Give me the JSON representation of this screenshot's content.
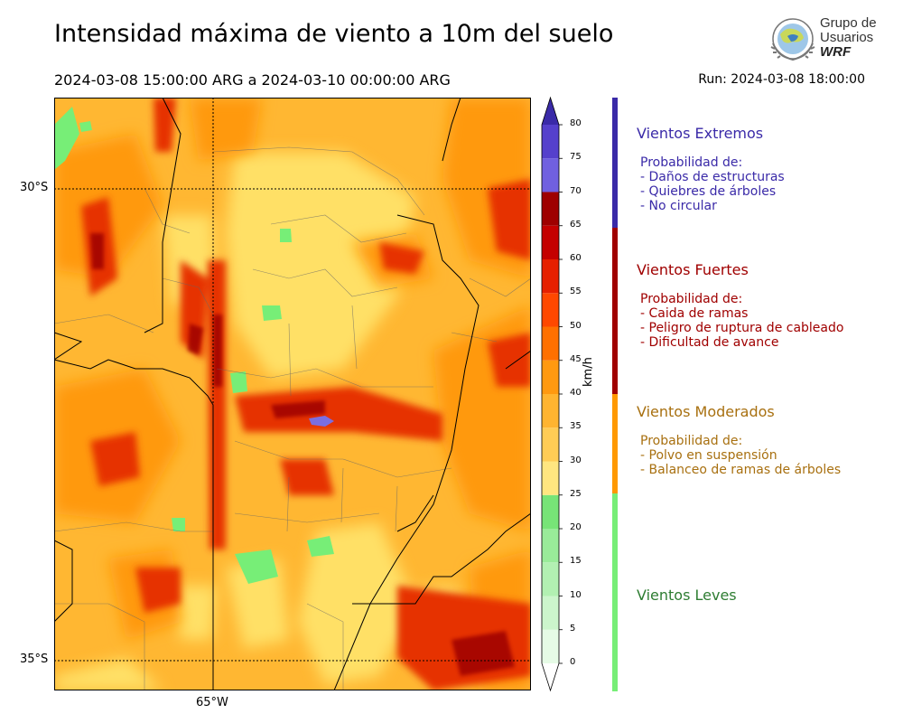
{
  "title": "Intensidad máxima de viento a 10m del suelo",
  "period": "2024-03-08 15:00:00 ARG  a  2024-03-10 00:00:00 ARG",
  "run": "Run: 2024-03-08 18:00:00",
  "logo": {
    "line1": "Grupo de",
    "line2": "Usuarios",
    "line3": "WRF"
  },
  "map": {
    "lat_labels": [
      "30°S",
      "35°S"
    ],
    "lon_labels": [
      "65°W"
    ],
    "gridlines": [
      "30°S",
      "35°S",
      "65°W"
    ],
    "dominant_colors": {
      "moderate_low": "#ffe066",
      "moderate_mid": "#ffb732",
      "moderate_high": "#ff9900",
      "strong": "#e63300",
      "leves": "#77ee77",
      "extreme": "#7b6ee0"
    }
  },
  "colorbar": {
    "unit": "km/h",
    "ticks": [
      "0",
      "5",
      "10",
      "15",
      "20",
      "25",
      "30",
      "35",
      "40",
      "45",
      "50",
      "55",
      "60",
      "65",
      "70",
      "75",
      "80"
    ],
    "levels": [
      {
        "from": 0,
        "to": 5,
        "color": "#e6fbe6"
      },
      {
        "from": 5,
        "to": 10,
        "color": "#ccf5cc"
      },
      {
        "from": 10,
        "to": 15,
        "color": "#b2f0b2"
      },
      {
        "from": 15,
        "to": 20,
        "color": "#99eb99"
      },
      {
        "from": 20,
        "to": 25,
        "color": "#77e477"
      },
      {
        "from": 25,
        "to": 30,
        "color": "#ffe680"
      },
      {
        "from": 30,
        "to": 35,
        "color": "#ffcc55"
      },
      {
        "from": 35,
        "to": 40,
        "color": "#ffb430"
      },
      {
        "from": 40,
        "to": 45,
        "color": "#ff9910"
      },
      {
        "from": 45,
        "to": 50,
        "color": "#ff7000"
      },
      {
        "from": 50,
        "to": 55,
        "color": "#ff4800"
      },
      {
        "from": 55,
        "to": 60,
        "color": "#e62000"
      },
      {
        "from": 60,
        "to": 65,
        "color": "#c40000"
      },
      {
        "from": 65,
        "to": 70,
        "color": "#9e0000"
      },
      {
        "from": 70,
        "to": 75,
        "color": "#7060e0"
      },
      {
        "from": 75,
        "to": 80,
        "color": "#5540cc"
      }
    ],
    "extend_colors": {
      "min": "#ffffff",
      "max": "#3a2aa8"
    }
  },
  "legend": [
    {
      "name": "Vientos Extremos",
      "color": "#3a2aa8",
      "text_color": "#3a2aa8",
      "desc": [
        "Probabilidad de:",
        "- Daños de estructuras",
        "- Quiebres de árboles",
        "- No circular"
      ]
    },
    {
      "name": "Vientos Fuertes",
      "color": "#a00000",
      "text_color": "#a00000",
      "desc": [
        "Probabilidad de:",
        "- Caida de ramas",
        "- Peligro de ruptura de cableado",
        "- Dificultad de avance"
      ]
    },
    {
      "name": "Vientos Moderados",
      "color": "#ff9900",
      "text_color": "#a87010",
      "desc": [
        "Probabilidad de:",
        "- Polvo en suspensión",
        "- Balanceo de ramas de árboles"
      ]
    },
    {
      "name": "Vientos Leves",
      "color": "#77ee77",
      "text_color": "#2e7d32",
      "desc": []
    }
  ]
}
